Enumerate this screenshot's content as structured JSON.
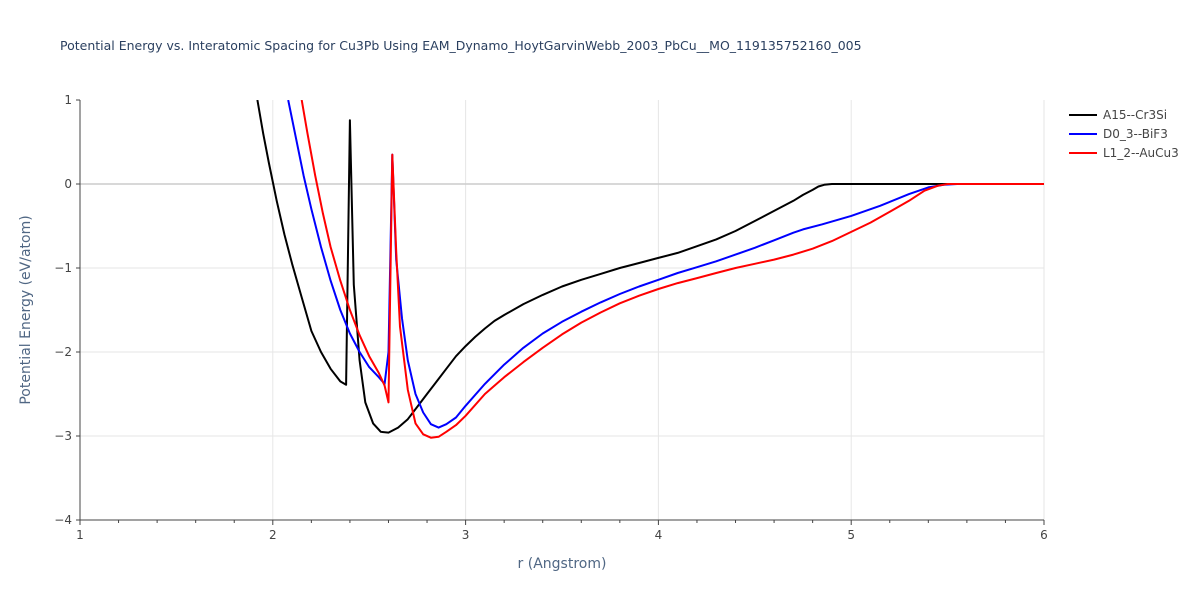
{
  "chart_data": {
    "type": "line",
    "title": "Potential Energy vs. Interatomic Spacing for Cu3Pb Using EAM_Dynamo_HoytGarvinWebb_2003_PbCu__MO_119135752160_005",
    "xlabel": "r (Angstrom)",
    "ylabel": "Potential Energy (eV/atom)",
    "xlim": [
      1,
      6
    ],
    "ylim": [
      -4,
      1
    ],
    "xticks": [
      1,
      2,
      3,
      4,
      5,
      6
    ],
    "yticks": [
      1,
      0,
      -1,
      -2,
      -3,
      -4
    ],
    "ytick_labels": [
      "1",
      "0",
      "−1",
      "−2",
      "−3",
      "−4"
    ],
    "grid": true,
    "legend_position": "top-right",
    "series": [
      {
        "name": "A15--Cr3Si",
        "color": "#000000",
        "x": [
          1.92,
          1.95,
          1.98,
          2.02,
          2.06,
          2.1,
          2.15,
          2.2,
          2.25,
          2.3,
          2.35,
          2.38,
          2.4,
          2.42,
          2.45,
          2.48,
          2.52,
          2.56,
          2.6,
          2.65,
          2.7,
          2.75,
          2.8,
          2.85,
          2.9,
          2.95,
          3.0,
          3.05,
          3.1,
          3.15,
          3.2,
          3.3,
          3.4,
          3.5,
          3.6,
          3.7,
          3.8,
          3.9,
          4.0,
          4.1,
          4.2,
          4.3,
          4.4,
          4.5,
          4.6,
          4.7,
          4.75,
          4.8,
          4.83,
          4.86,
          4.9,
          5.0,
          5.5,
          6.0
        ],
        "y": [
          1.0,
          0.6,
          0.25,
          -0.2,
          -0.6,
          -0.95,
          -1.35,
          -1.75,
          -2.0,
          -2.2,
          -2.35,
          -2.39,
          0.76,
          -1.2,
          -2.1,
          -2.6,
          -2.85,
          -2.95,
          -2.96,
          -2.9,
          -2.8,
          -2.65,
          -2.5,
          -2.35,
          -2.2,
          -2.05,
          -1.93,
          -1.82,
          -1.72,
          -1.63,
          -1.56,
          -1.43,
          -1.32,
          -1.22,
          -1.14,
          -1.07,
          -1.0,
          -0.94,
          -0.88,
          -0.82,
          -0.74,
          -0.66,
          -0.56,
          -0.44,
          -0.32,
          -0.2,
          -0.13,
          -0.07,
          -0.03,
          -0.01,
          0.0,
          0.0,
          0.0,
          0.0
        ]
      },
      {
        "name": "D0_3--BiF3",
        "color": "#0000ff",
        "x": [
          2.08,
          2.12,
          2.16,
          2.2,
          2.25,
          2.3,
          2.35,
          2.4,
          2.45,
          2.5,
          2.55,
          2.58,
          2.6,
          2.62,
          2.64,
          2.67,
          2.7,
          2.74,
          2.78,
          2.82,
          2.86,
          2.9,
          2.95,
          3.0,
          3.1,
          3.2,
          3.3,
          3.4,
          3.5,
          3.6,
          3.7,
          3.8,
          3.9,
          4.0,
          4.1,
          4.2,
          4.3,
          4.4,
          4.5,
          4.6,
          4.7,
          4.75,
          4.85,
          5.0,
          5.15,
          5.3,
          5.4,
          5.48,
          5.55,
          6.0
        ],
        "y": [
          1.0,
          0.55,
          0.1,
          -0.3,
          -0.75,
          -1.15,
          -1.5,
          -1.78,
          -2.0,
          -2.18,
          -2.3,
          -2.38,
          -2.0,
          0.35,
          -0.9,
          -1.6,
          -2.1,
          -2.5,
          -2.72,
          -2.86,
          -2.9,
          -2.86,
          -2.78,
          -2.64,
          -2.38,
          -2.15,
          -1.95,
          -1.78,
          -1.64,
          -1.52,
          -1.41,
          -1.31,
          -1.22,
          -1.14,
          -1.06,
          -0.99,
          -0.92,
          -0.84,
          -0.76,
          -0.67,
          -0.58,
          -0.54,
          -0.48,
          -0.38,
          -0.26,
          -0.12,
          -0.04,
          -0.01,
          0.0,
          0.0
        ]
      },
      {
        "name": "L1_2--AuCu3",
        "color": "#ff0000",
        "x": [
          2.15,
          2.18,
          2.22,
          2.26,
          2.3,
          2.35,
          2.4,
          2.45,
          2.5,
          2.55,
          2.58,
          2.6,
          2.62,
          2.64,
          2.66,
          2.7,
          2.74,
          2.78,
          2.82,
          2.86,
          2.9,
          2.95,
          3.0,
          3.1,
          3.2,
          3.3,
          3.4,
          3.5,
          3.6,
          3.7,
          3.8,
          3.9,
          4.0,
          4.1,
          4.2,
          4.3,
          4.4,
          4.5,
          4.6,
          4.7,
          4.8,
          4.9,
          5.0,
          5.1,
          5.2,
          5.3,
          5.38,
          5.45,
          5.5,
          6.0
        ],
        "y": [
          1.0,
          0.6,
          0.1,
          -0.35,
          -0.75,
          -1.15,
          -1.5,
          -1.8,
          -2.05,
          -2.25,
          -2.4,
          -2.6,
          0.35,
          -0.8,
          -1.7,
          -2.45,
          -2.85,
          -2.98,
          -3.02,
          -3.01,
          -2.95,
          -2.87,
          -2.76,
          -2.5,
          -2.3,
          -2.12,
          -1.95,
          -1.79,
          -1.65,
          -1.53,
          -1.42,
          -1.33,
          -1.25,
          -1.18,
          -1.12,
          -1.06,
          -1.0,
          -0.95,
          -0.9,
          -0.84,
          -0.77,
          -0.68,
          -0.57,
          -0.46,
          -0.33,
          -0.2,
          -0.08,
          -0.02,
          0.0,
          0.0
        ]
      }
    ]
  }
}
